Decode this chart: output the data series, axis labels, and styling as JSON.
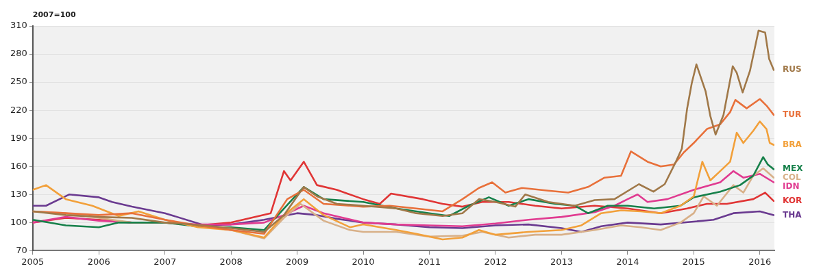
{
  "chart_data": {
    "type": "line",
    "ylabel": "2007=100",
    "xlim": [
      2005,
      2016.22
    ],
    "xticks": [
      2005,
      2006,
      2007,
      2008,
      2009,
      2010,
      2011,
      2012,
      2013,
      2014,
      2015,
      2016
    ],
    "ylim": [
      70,
      310
    ],
    "yticks": [
      70,
      100,
      130,
      160,
      190,
      220,
      250,
      280,
      310
    ],
    "grid": "y",
    "legend": false,
    "marker": "none",
    "line_style": "solid",
    "series": [
      {
        "name": "RUS",
        "color": "#a07848",
        "x": [
          2005,
          2005.5,
          2006,
          2006.5,
          2007,
          2007.6,
          2008,
          2008.5,
          2008.8,
          2009.1,
          2009.3,
          2009.6,
          2010,
          2010.5,
          2010.8,
          2011.2,
          2011.5,
          2011.75,
          2012,
          2012.3,
          2012.45,
          2012.8,
          2013.2,
          2013.5,
          2013.8,
          2014.17,
          2014.39,
          2014.56,
          2014.73,
          2014.82,
          2014.9,
          2014.97,
          2015.04,
          2015.18,
          2015.25,
          2015.33,
          2015.45,
          2015.59,
          2015.65,
          2015.74,
          2015.85,
          2015.98,
          2016.08,
          2016.14,
          2016.21
        ],
        "values": [
          112,
          108,
          106,
          105,
          100,
          97,
          94,
          90,
          108,
          138,
          128,
          120,
          118,
          115,
          110,
          107,
          110,
          125,
          122,
          117,
          130,
          122,
          118,
          124,
          125,
          141,
          133,
          141,
          165,
          179,
          222,
          249,
          269,
          240,
          214,
          194,
          215,
          267,
          260,
          239,
          262,
          305,
          303,
          275,
          263
        ]
      },
      {
        "name": "TUR",
        "color": "#e8703a",
        "x": [
          2005,
          2005.5,
          2006,
          2006.5,
          2007,
          2007.5,
          2008,
          2008.5,
          2008.85,
          2009.1,
          2009.4,
          2010,
          2010.4,
          2010.8,
          2011.2,
          2011.5,
          2011.75,
          2011.95,
          2012.15,
          2012.4,
          2012.8,
          2013.1,
          2013.4,
          2013.65,
          2013.9,
          2014.05,
          2014.3,
          2014.5,
          2014.7,
          2014.85,
          2015,
          2015.2,
          2015.4,
          2015.55,
          2015.63,
          2015.8,
          2016,
          2016.1,
          2016.21
        ],
        "values": [
          112,
          110,
          108,
          110,
          103,
          97,
          92,
          88,
          125,
          135,
          120,
          117,
          118,
          115,
          112,
          125,
          137,
          143,
          132,
          137,
          134,
          132,
          138,
          148,
          150,
          176,
          165,
          160,
          162,
          175,
          185,
          200,
          205,
          218,
          231,
          222,
          232,
          225,
          215
        ]
      },
      {
        "name": "BRA",
        "color": "#f2a03a",
        "x": [
          2005,
          2005.2,
          2005.5,
          2005.9,
          2006.3,
          2006.6,
          2007,
          2007.5,
          2008,
          2008.5,
          2008.8,
          2009.1,
          2009.4,
          2009.8,
          2010,
          2010.5,
          2010.8,
          2011.2,
          2011.5,
          2011.75,
          2012,
          2012.5,
          2013,
          2013.3,
          2013.6,
          2013.9,
          2014.2,
          2014.5,
          2014.8,
          2015,
          2015.13,
          2015.25,
          2015.4,
          2015.55,
          2015.65,
          2015.75,
          2015.9,
          2016,
          2016.1,
          2016.15,
          2016.21
        ],
        "values": [
          135,
          140,
          125,
          118,
          107,
          112,
          103,
          95,
          92,
          84,
          108,
          125,
          108,
          95,
          98,
          92,
          88,
          82,
          84,
          92,
          87,
          90,
          92,
          97,
          110,
          113,
          112,
          110,
          118,
          128,
          165,
          145,
          155,
          165,
          196,
          185,
          198,
          208,
          200,
          185,
          183
        ]
      },
      {
        "name": "MEX",
        "color": "#16804a",
        "x": [
          2005,
          2005.5,
          2006,
          2006.3,
          2007,
          2007.6,
          2008,
          2008.5,
          2008.8,
          2009.1,
          2009.4,
          2010,
          2010.5,
          2011,
          2011.3,
          2011.6,
          2011.9,
          2012.2,
          2012.5,
          2012.9,
          2013.2,
          2013.4,
          2013.7,
          2014,
          2014.4,
          2014.8,
          2015,
          2015.4,
          2015.7,
          2015.9,
          2016.05,
          2016.12,
          2016.21
        ],
        "values": [
          103,
          97,
          95,
          100,
          100,
          95,
          95,
          92,
          115,
          138,
          125,
          122,
          115,
          110,
          107,
          118,
          127,
          118,
          125,
          120,
          118,
          110,
          118,
          118,
          115,
          118,
          127,
          133,
          140,
          150,
          170,
          162,
          157
        ]
      },
      {
        "name": "COL",
        "color": "#d8b088",
        "x": [
          2005,
          2005.5,
          2006,
          2006.5,
          2007,
          2007.5,
          2008,
          2008.5,
          2008.8,
          2009.05,
          2009.4,
          2009.8,
          2010,
          2010.5,
          2011,
          2011.5,
          2011.8,
          2012.2,
          2012.6,
          2013,
          2013.5,
          2013.9,
          2014.2,
          2014.5,
          2014.8,
          2015,
          2015.15,
          2015.35,
          2015.6,
          2015.75,
          2015.9,
          2016.05,
          2016.21
        ],
        "values": [
          112,
          110,
          105,
          100,
          100,
          97,
          92,
          83,
          105,
          120,
          102,
          92,
          90,
          90,
          85,
          86,
          90,
          84,
          87,
          87,
          92,
          97,
          95,
          92,
          100,
          110,
          128,
          118,
          140,
          132,
          150,
          158,
          148
        ]
      },
      {
        "name": "IDN",
        "color": "#e03a90",
        "x": [
          2005,
          2005.5,
          2006,
          2006.5,
          2007,
          2007.5,
          2008,
          2008.5,
          2008.8,
          2009.1,
          2009.4,
          2010,
          2010.5,
          2011,
          2011.5,
          2012,
          2012.5,
          2013,
          2013.5,
          2013.8,
          2014,
          2014.15,
          2014.3,
          2014.6,
          2015,
          2015.4,
          2015.6,
          2015.75,
          2016,
          2016.21
        ],
        "values": [
          100,
          106,
          102,
          100,
          100,
          98,
          98,
          100,
          108,
          118,
          110,
          100,
          98,
          97,
          96,
          99,
          103,
          106,
          111,
          118,
          125,
          130,
          122,
          125,
          135,
          143,
          155,
          148,
          152,
          143
        ]
      },
      {
        "name": "KOR",
        "color": "#e03535",
        "x": [
          2005,
          2005.5,
          2006,
          2006.5,
          2007,
          2007.5,
          2008,
          2008.3,
          2008.6,
          2008.8,
          2008.9,
          2009.1,
          2009.3,
          2009.6,
          2010,
          2010.25,
          2010.42,
          2010.9,
          2011.2,
          2011.5,
          2011.8,
          2012.2,
          2012.6,
          2013,
          2013.5,
          2014,
          2014.5,
          2014.9,
          2015.2,
          2015.5,
          2015.9,
          2016.08,
          2016.21
        ],
        "values": [
          100,
          105,
          103,
          100,
          100,
          97,
          100,
          105,
          110,
          155,
          145,
          165,
          140,
          135,
          125,
          120,
          131,
          125,
          120,
          117,
          122,
          122,
          118,
          115,
          118,
          115,
          110,
          115,
          120,
          120,
          125,
          132,
          123
        ]
      },
      {
        "name": "THA",
        "color": "#6a3a90",
        "x": [
          2005,
          2005.2,
          2005.55,
          2006,
          2006.2,
          2006.5,
          2007,
          2007.6,
          2008,
          2008.5,
          2009,
          2009.3,
          2009.6,
          2010,
          2010.5,
          2011,
          2011.5,
          2012,
          2012.5,
          2013,
          2013.3,
          2013.6,
          2014,
          2014.5,
          2015,
          2015.3,
          2015.6,
          2016,
          2016.21
        ],
        "values": [
          118,
          118,
          130,
          127,
          122,
          117,
          110,
          97,
          98,
          103,
          110,
          108,
          104,
          100,
          98,
          95,
          94,
          97,
          98,
          94,
          90,
          96,
          100,
          98,
          101,
          103,
          110,
          112,
          108
        ]
      }
    ]
  }
}
